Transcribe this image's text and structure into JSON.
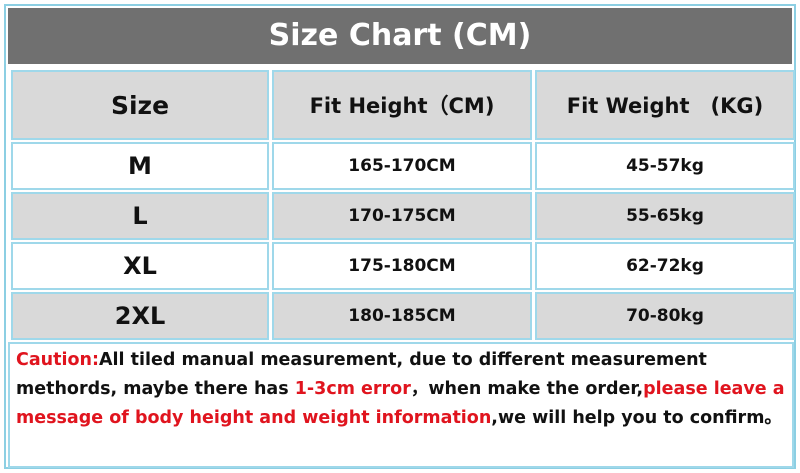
{
  "header": {
    "title": "Size Chart (CM)"
  },
  "table": {
    "columns": [
      "Size",
      "Fit Height（CM)",
      "Fit Weight　(KG)"
    ],
    "rows": [
      [
        "M",
        "165-170CM",
        "45-57kg"
      ],
      [
        "L",
        "170-175CM",
        "55-65kg"
      ],
      [
        "XL",
        "175-180CM",
        "62-72kg"
      ],
      [
        "2XL",
        "180-185CM",
        "70-80kg"
      ]
    ]
  },
  "note": {
    "segments": [
      "Caution:",
      "All tiled manual measurement, due to different measurement methords, maybe there has ",
      "1-3cm error",
      "，when make the order,",
      "please leave a message of body height and weight information",
      ",we will help you to confirm。"
    ]
  }
}
